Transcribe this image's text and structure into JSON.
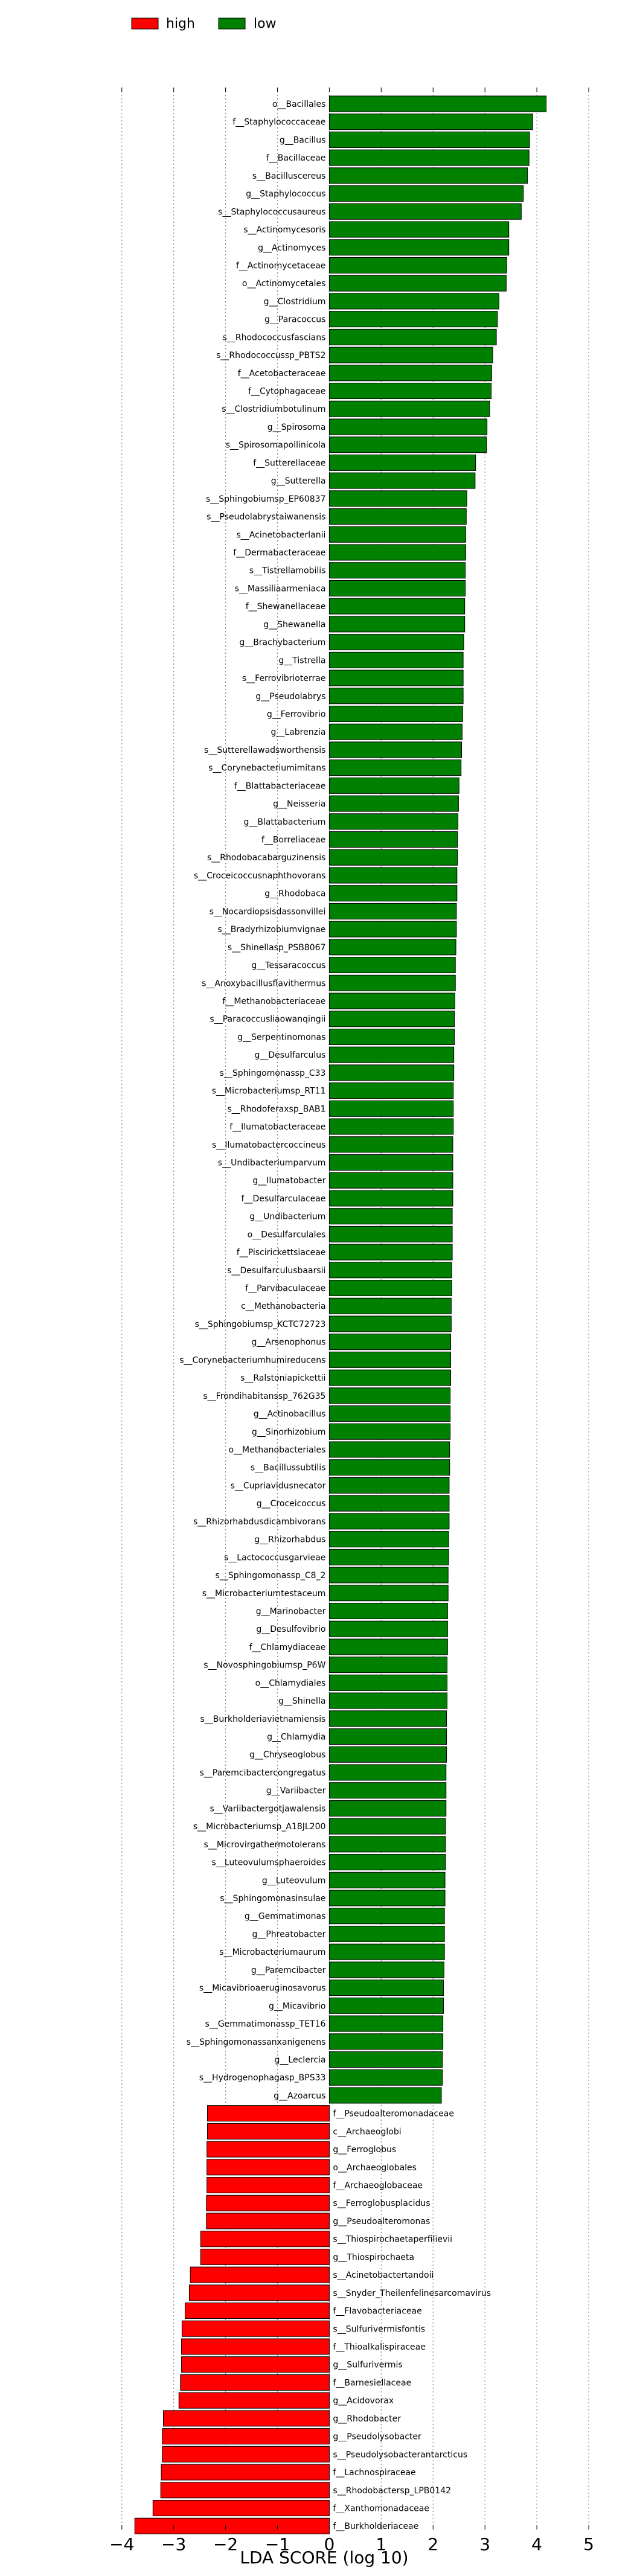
{
  "colors": {
    "high": "#ff0000",
    "low": "#008000",
    "grid": "#888888"
  },
  "chart_data": {
    "type": "bar",
    "orientation": "horizontal",
    "xlabel": "LDA SCORE (log 10)",
    "xlim": [
      -4.3,
      5.0
    ],
    "xticks": [
      -4,
      -3,
      -2,
      -1,
      0,
      1,
      2,
      3,
      4,
      5
    ],
    "grid": true,
    "legend_position": "top-left",
    "series": [
      {
        "name": "high",
        "color": "#ff0000"
      },
      {
        "name": "low",
        "color": "#008000"
      }
    ],
    "bars": [
      {
        "label": "o__Bacillales",
        "value": 4.18,
        "group": "low"
      },
      {
        "label": "f__Staphylococcaceae",
        "value": 3.92,
        "group": "low"
      },
      {
        "label": "g__Bacillus",
        "value": 3.86,
        "group": "low"
      },
      {
        "label": "f__Bacillaceae",
        "value": 3.85,
        "group": "low"
      },
      {
        "label": "s__Bacilluscereus",
        "value": 3.82,
        "group": "low"
      },
      {
        "label": "g__Staphylococcus",
        "value": 3.74,
        "group": "low"
      },
      {
        "label": "s__Staphylococcusaureus",
        "value": 3.7,
        "group": "low"
      },
      {
        "label": "s__Actinomycesoris",
        "value": 3.46,
        "group": "low"
      },
      {
        "label": "g__Actinomyces",
        "value": 3.46,
        "group": "low"
      },
      {
        "label": "f__Actinomycetaceae",
        "value": 3.42,
        "group": "low"
      },
      {
        "label": "o__Actinomycetales",
        "value": 3.41,
        "group": "low"
      },
      {
        "label": "g__Clostridium",
        "value": 3.27,
        "group": "low"
      },
      {
        "label": "g__Paracoccus",
        "value": 3.24,
        "group": "low"
      },
      {
        "label": "s__Rhodococcusfascians",
        "value": 3.22,
        "group": "low"
      },
      {
        "label": "s__Rhodococcussp_PBTS2",
        "value": 3.15,
        "group": "low"
      },
      {
        "label": "f__Acetobacteraceae",
        "value": 3.13,
        "group": "low"
      },
      {
        "label": "f__Cytophagaceae",
        "value": 3.12,
        "group": "low"
      },
      {
        "label": "s__Clostridiumbotulinum",
        "value": 3.09,
        "group": "low"
      },
      {
        "label": "g__Spirosoma",
        "value": 3.04,
        "group": "low"
      },
      {
        "label": "s__Spirosomapollinicola",
        "value": 3.03,
        "group": "low"
      },
      {
        "label": "f__Sutterellaceae",
        "value": 2.82,
        "group": "low"
      },
      {
        "label": "g__Sutterella",
        "value": 2.81,
        "group": "low"
      },
      {
        "label": "s__Sphingobiumsp_EP60837",
        "value": 2.65,
        "group": "low"
      },
      {
        "label": "s__Pseudolabrystaiwanensis",
        "value": 2.64,
        "group": "low"
      },
      {
        "label": "s__Acinetobacterlanii",
        "value": 2.63,
        "group": "low"
      },
      {
        "label": "f__Dermabacteraceae",
        "value": 2.63,
        "group": "low"
      },
      {
        "label": "s__Tistrellamobilis",
        "value": 2.62,
        "group": "low"
      },
      {
        "label": "s__Massiliaarmeniaca",
        "value": 2.62,
        "group": "low"
      },
      {
        "label": "f__Shewanellaceae",
        "value": 2.61,
        "group": "low"
      },
      {
        "label": "g__Shewanella",
        "value": 2.61,
        "group": "low"
      },
      {
        "label": "g__Brachybacterium",
        "value": 2.59,
        "group": "low"
      },
      {
        "label": "g__Tistrella",
        "value": 2.58,
        "group": "low"
      },
      {
        "label": "s__Ferrovibrioterrae",
        "value": 2.58,
        "group": "low"
      },
      {
        "label": "g__Pseudolabrys",
        "value": 2.58,
        "group": "low"
      },
      {
        "label": "g__Ferrovibrio",
        "value": 2.57,
        "group": "low"
      },
      {
        "label": "g__Labrenzia",
        "value": 2.56,
        "group": "low"
      },
      {
        "label": "s__Sutterellawadsworthensis",
        "value": 2.55,
        "group": "low"
      },
      {
        "label": "s__Corynebacteriumimitans",
        "value": 2.54,
        "group": "low"
      },
      {
        "label": "f__Blattabacteriaceae",
        "value": 2.5,
        "group": "low"
      },
      {
        "label": "g__Neisseria",
        "value": 2.49,
        "group": "low"
      },
      {
        "label": "g__Blattabacterium",
        "value": 2.48,
        "group": "low"
      },
      {
        "label": "f__Borreliaceae",
        "value": 2.47,
        "group": "low"
      },
      {
        "label": "s__Rhodobacabarguzinensis",
        "value": 2.47,
        "group": "low"
      },
      {
        "label": "s__Croceicoccusnaphthovorans",
        "value": 2.46,
        "group": "low"
      },
      {
        "label": "g__Rhodobaca",
        "value": 2.46,
        "group": "low"
      },
      {
        "label": "s__Nocardiopsisdassonvillei",
        "value": 2.45,
        "group": "low"
      },
      {
        "label": "s__Bradyrhizobiumvignae",
        "value": 2.45,
        "group": "low"
      },
      {
        "label": "s__Shinellasp_PSB8067",
        "value": 2.44,
        "group": "low"
      },
      {
        "label": "g__Tessaracoccus",
        "value": 2.43,
        "group": "low"
      },
      {
        "label": "s__Anoxybacillusflavithermus",
        "value": 2.43,
        "group": "low"
      },
      {
        "label": "f__Methanobacteriaceae",
        "value": 2.42,
        "group": "low"
      },
      {
        "label": "s__Paracoccusliaowanqingii",
        "value": 2.41,
        "group": "low"
      },
      {
        "label": "g__Serpentinomonas",
        "value": 2.41,
        "group": "low"
      },
      {
        "label": "g__Desulfarculus",
        "value": 2.4,
        "group": "low"
      },
      {
        "label": "s__Sphingomonassp_C33",
        "value": 2.4,
        "group": "low"
      },
      {
        "label": "s__Microbacteriumsp_RT11",
        "value": 2.39,
        "group": "low"
      },
      {
        "label": "s__Rhodoferaxsp_BAB1",
        "value": 2.39,
        "group": "low"
      },
      {
        "label": "f__Ilumatobacteraceae",
        "value": 2.39,
        "group": "low"
      },
      {
        "label": "s__Ilumatobactercoccineus",
        "value": 2.38,
        "group": "low"
      },
      {
        "label": "s__Undibacteriumparvum",
        "value": 2.38,
        "group": "low"
      },
      {
        "label": "g__Ilumatobacter",
        "value": 2.38,
        "group": "low"
      },
      {
        "label": "f__Desulfarculaceae",
        "value": 2.38,
        "group": "low"
      },
      {
        "label": "g__Undibacterium",
        "value": 2.37,
        "group": "low"
      },
      {
        "label": "o__Desulfarculales",
        "value": 2.37,
        "group": "low"
      },
      {
        "label": "f__Piscirickettsiaceae",
        "value": 2.37,
        "group": "low"
      },
      {
        "label": "s__Desulfarculusbaarsii",
        "value": 2.36,
        "group": "low"
      },
      {
        "label": "f__Parvibaculaceae",
        "value": 2.36,
        "group": "low"
      },
      {
        "label": "c__Methanobacteria",
        "value": 2.35,
        "group": "low"
      },
      {
        "label": "s__Sphingobiumsp_KCTC72723",
        "value": 2.35,
        "group": "low"
      },
      {
        "label": "g__Arsenophonus",
        "value": 2.34,
        "group": "low"
      },
      {
        "label": "s__Corynebacteriumhumireducens",
        "value": 2.34,
        "group": "low"
      },
      {
        "label": "s__Ralstoniapickettii",
        "value": 2.34,
        "group": "low"
      },
      {
        "label": "s__Frondihabitanssp_762G35",
        "value": 2.33,
        "group": "low"
      },
      {
        "label": "g__Actinobacillus",
        "value": 2.33,
        "group": "low"
      },
      {
        "label": "g__Sinorhizobium",
        "value": 2.33,
        "group": "low"
      },
      {
        "label": "o__Methanobacteriales",
        "value": 2.32,
        "group": "low"
      },
      {
        "label": "s__Bacillussubtilis",
        "value": 2.32,
        "group": "low"
      },
      {
        "label": "s__Cupriavidusnecator",
        "value": 2.31,
        "group": "low"
      },
      {
        "label": "g__Croceicoccus",
        "value": 2.31,
        "group": "low"
      },
      {
        "label": "s__Rhizorhabdusdicambivorans",
        "value": 2.31,
        "group": "low"
      },
      {
        "label": "g__Rhizorhabdus",
        "value": 2.3,
        "group": "low"
      },
      {
        "label": "s__Lactococcusgarvieae",
        "value": 2.3,
        "group": "low"
      },
      {
        "label": "s__Sphingomonassp_C8_2",
        "value": 2.29,
        "group": "low"
      },
      {
        "label": "s__Microbacteriumtestaceum",
        "value": 2.29,
        "group": "low"
      },
      {
        "label": "g__Marinobacter",
        "value": 2.28,
        "group": "low"
      },
      {
        "label": "g__Desulfovibrio",
        "value": 2.28,
        "group": "low"
      },
      {
        "label": "f__Chlamydiaceae",
        "value": 2.28,
        "group": "low"
      },
      {
        "label": "s__Novosphingobiumsp_P6W",
        "value": 2.27,
        "group": "low"
      },
      {
        "label": "o__Chlamydiales",
        "value": 2.27,
        "group": "low"
      },
      {
        "label": "g__Shinella",
        "value": 2.27,
        "group": "low"
      },
      {
        "label": "s__Burkholderiavietnamiensis",
        "value": 2.26,
        "group": "low"
      },
      {
        "label": "g__Chlamydia",
        "value": 2.26,
        "group": "low"
      },
      {
        "label": "g__Chryseoglobus",
        "value": 2.26,
        "group": "low"
      },
      {
        "label": "s__Paremcibactercongregatus",
        "value": 2.25,
        "group": "low"
      },
      {
        "label": "g__Variibacter",
        "value": 2.25,
        "group": "low"
      },
      {
        "label": "s__Variibactergotjawalensis",
        "value": 2.25,
        "group": "low"
      },
      {
        "label": "s__Microbacteriumsp_A18JL200",
        "value": 2.24,
        "group": "low"
      },
      {
        "label": "s__Microvirgathermotolerans",
        "value": 2.24,
        "group": "low"
      },
      {
        "label": "s__Luteovulumsphaeroides",
        "value": 2.24,
        "group": "low"
      },
      {
        "label": "g__Luteovulum",
        "value": 2.23,
        "group": "low"
      },
      {
        "label": "s__Sphingomonasinsulae",
        "value": 2.23,
        "group": "low"
      },
      {
        "label": "g__Gemmatimonas",
        "value": 2.22,
        "group": "low"
      },
      {
        "label": "g__Phreatobacter",
        "value": 2.22,
        "group": "low"
      },
      {
        "label": "s__Microbacteriumaurum",
        "value": 2.22,
        "group": "low"
      },
      {
        "label": "g__Paremcibacter",
        "value": 2.21,
        "group": "low"
      },
      {
        "label": "s__Micavibrioaeruginosavorus",
        "value": 2.2,
        "group": "low"
      },
      {
        "label": "g__Micavibrio",
        "value": 2.2,
        "group": "low"
      },
      {
        "label": "s__Gemmatimonassp_TET16",
        "value": 2.19,
        "group": "low"
      },
      {
        "label": "s__Sphingomonassanxanigenens",
        "value": 2.19,
        "group": "low"
      },
      {
        "label": "g__Leclercia",
        "value": 2.18,
        "group": "low"
      },
      {
        "label": "s__Hydrogenophagasp_BPS33",
        "value": 2.18,
        "group": "low"
      },
      {
        "label": "g__Azoarcus",
        "value": 2.16,
        "group": "low"
      },
      {
        "label": "f__Pseudoalteromonadaceae",
        "value": -2.35,
        "group": "high"
      },
      {
        "label": "c__Archaeoglobi",
        "value": -2.35,
        "group": "high"
      },
      {
        "label": "g__Ferroglobus",
        "value": -2.36,
        "group": "high"
      },
      {
        "label": "o__Archaeoglobales",
        "value": -2.36,
        "group": "high"
      },
      {
        "label": "f__Archaeoglobaceae",
        "value": -2.36,
        "group": "high"
      },
      {
        "label": "s__Ferroglobusplacidus",
        "value": -2.37,
        "group": "high"
      },
      {
        "label": "g__Pseudoalteromonas",
        "value": -2.37,
        "group": "high"
      },
      {
        "label": "s__Thiospirochaetaperfilievii",
        "value": -2.48,
        "group": "high"
      },
      {
        "label": "g__Thiospirochaeta",
        "value": -2.48,
        "group": "high"
      },
      {
        "label": "s__Acinetobactertandoii",
        "value": -2.68,
        "group": "high"
      },
      {
        "label": "s__Snyder_Theilenfelinesarcomavirus",
        "value": -2.7,
        "group": "high"
      },
      {
        "label": "f__Flavobacteriaceae",
        "value": -2.78,
        "group": "high"
      },
      {
        "label": "s__Sulfurivermisfontis",
        "value": -2.84,
        "group": "high"
      },
      {
        "label": "f__Thioalkalispiraceae",
        "value": -2.85,
        "group": "high"
      },
      {
        "label": "g__Sulfurivermis",
        "value": -2.85,
        "group": "high"
      },
      {
        "label": "f__Barnesiellaceae",
        "value": -2.87,
        "group": "high"
      },
      {
        "label": "g__Acidovorax",
        "value": -2.9,
        "group": "high"
      },
      {
        "label": "g__Rhodobacter",
        "value": -3.2,
        "group": "high"
      },
      {
        "label": "g__Pseudolysobacter",
        "value": -3.22,
        "group": "high"
      },
      {
        "label": "s__Pseudolysobacterantarcticus",
        "value": -3.22,
        "group": "high"
      },
      {
        "label": "f__Lachnospiraceae",
        "value": -3.24,
        "group": "high"
      },
      {
        "label": "s__Rhodobactersp_LPB0142",
        "value": -3.25,
        "group": "high"
      },
      {
        "label": "f__Xanthomonadaceae",
        "value": -3.4,
        "group": "high"
      },
      {
        "label": "f__Burkholderiaceae",
        "value": -3.75,
        "group": "high"
      }
    ]
  }
}
